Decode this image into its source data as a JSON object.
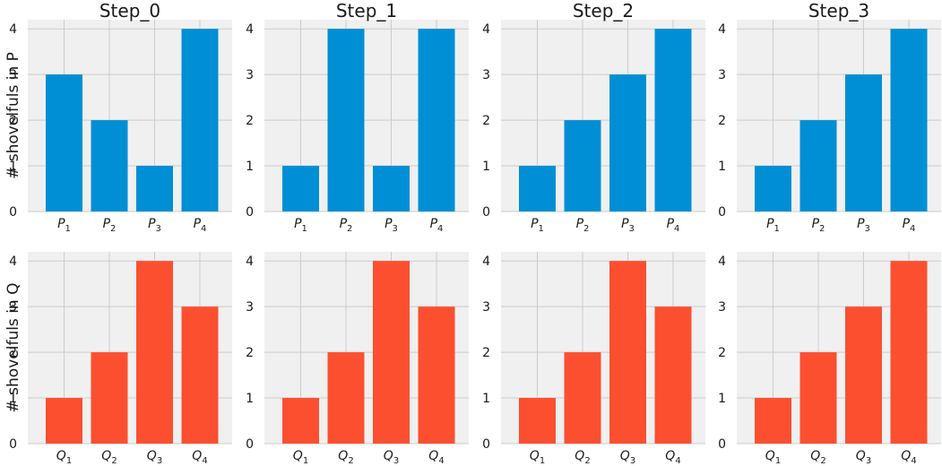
{
  "colors": {
    "p_bar": "#008fd5",
    "q_bar": "#fc4f30",
    "panel_bg": "#f0f0f0",
    "grid": "#cbcbcb"
  },
  "chart_data": [
    {
      "type": "bar",
      "row": "P",
      "title": "Step_0",
      "ylabel": "# shovelfuls in P",
      "categories": [
        "P1",
        "P2",
        "P3",
        "P4"
      ],
      "cat_letter": "P",
      "cat_sub": [
        "1",
        "2",
        "3",
        "4"
      ],
      "values": [
        3,
        2,
        1,
        4
      ],
      "ylim": [
        0,
        4.2
      ],
      "yticks": [
        "0",
        "1",
        "2",
        "3",
        "4"
      ]
    },
    {
      "type": "bar",
      "row": "P",
      "title": "Step_1",
      "ylabel": "",
      "categories": [
        "P1",
        "P2",
        "P3",
        "P4"
      ],
      "cat_letter": "P",
      "cat_sub": [
        "1",
        "2",
        "3",
        "4"
      ],
      "values": [
        1,
        4,
        1,
        4
      ],
      "ylim": [
        0,
        4.2
      ],
      "yticks": [
        "0",
        "1",
        "2",
        "3",
        "4"
      ]
    },
    {
      "type": "bar",
      "row": "P",
      "title": "Step_2",
      "ylabel": "",
      "categories": [
        "P1",
        "P2",
        "P3",
        "P4"
      ],
      "cat_letter": "P",
      "cat_sub": [
        "1",
        "2",
        "3",
        "4"
      ],
      "values": [
        1,
        2,
        3,
        4
      ],
      "ylim": [
        0,
        4.2
      ],
      "yticks": [
        "0",
        "1",
        "2",
        "3",
        "4"
      ]
    },
    {
      "type": "bar",
      "row": "P",
      "title": "Step_3",
      "ylabel": "",
      "categories": [
        "P1",
        "P2",
        "P3",
        "P4"
      ],
      "cat_letter": "P",
      "cat_sub": [
        "1",
        "2",
        "3",
        "4"
      ],
      "values": [
        1,
        2,
        3,
        4
      ],
      "ylim": [
        0,
        4.2
      ],
      "yticks": [
        "0",
        "1",
        "2",
        "3",
        "4"
      ]
    },
    {
      "type": "bar",
      "row": "Q",
      "title": "",
      "ylabel": "# shovelfuls in Q",
      "categories": [
        "Q1",
        "Q2",
        "Q3",
        "Q4"
      ],
      "cat_letter": "Q",
      "cat_sub": [
        "1",
        "2",
        "3",
        "4"
      ],
      "values": [
        1,
        2,
        4,
        3
      ],
      "ylim": [
        0,
        4.2
      ],
      "yticks": [
        "0",
        "1",
        "2",
        "3",
        "4"
      ]
    },
    {
      "type": "bar",
      "row": "Q",
      "title": "",
      "ylabel": "",
      "categories": [
        "Q1",
        "Q2",
        "Q3",
        "Q4"
      ],
      "cat_letter": "Q",
      "cat_sub": [
        "1",
        "2",
        "3",
        "4"
      ],
      "values": [
        1,
        2,
        4,
        3
      ],
      "ylim": [
        0,
        4.2
      ],
      "yticks": [
        "0",
        "1",
        "2",
        "3",
        "4"
      ]
    },
    {
      "type": "bar",
      "row": "Q",
      "title": "",
      "ylabel": "",
      "categories": [
        "Q1",
        "Q2",
        "Q3",
        "Q4"
      ],
      "cat_letter": "Q",
      "cat_sub": [
        "1",
        "2",
        "3",
        "4"
      ],
      "values": [
        1,
        2,
        4,
        3
      ],
      "ylim": [
        0,
        4.2
      ],
      "yticks": [
        "0",
        "1",
        "2",
        "3",
        "4"
      ]
    },
    {
      "type": "bar",
      "row": "Q",
      "title": "",
      "ylabel": "",
      "categories": [
        "Q1",
        "Q2",
        "Q3",
        "Q4"
      ],
      "cat_letter": "Q",
      "cat_sub": [
        "1",
        "2",
        "3",
        "4"
      ],
      "values": [
        1,
        2,
        3,
        4
      ],
      "ylim": [
        0,
        4.2
      ],
      "yticks": [
        "0",
        "1",
        "2",
        "3",
        "4"
      ]
    }
  ]
}
